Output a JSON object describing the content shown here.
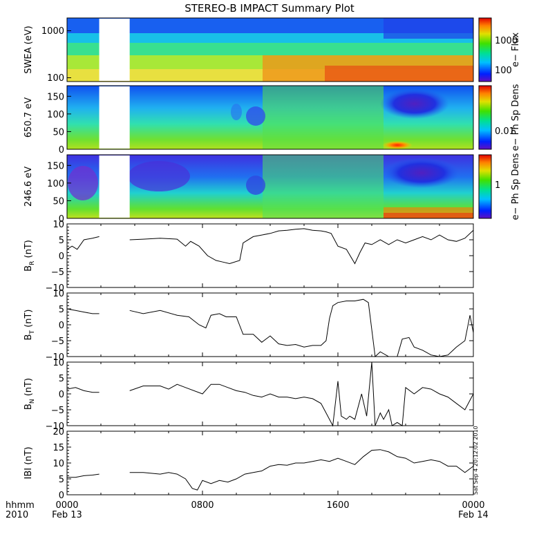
{
  "chart_data": {
    "type": "line",
    "title": "STEREO-B IMPACT Summary Plot",
    "x_axis": {
      "corner_labels": [
        "hhmm",
        "2010"
      ],
      "tick_labels": [
        "0000",
        "0800",
        "1600",
        "0000"
      ],
      "tick_dates": [
        "Feb 13",
        "",
        "",
        "Feb 14"
      ],
      "range_hours": [
        0,
        24
      ]
    },
    "data_gaps_hours": [
      [
        1.9,
        3.7
      ]
    ],
    "side_stamp": "Sat Sep  4 20:12:02 2010",
    "spectrograms": [
      {
        "ylabel": "SWEA (eV)",
        "ylim": [
          100,
          2000
        ],
        "y_scale": "log",
        "y_ticks": [
          "1000",
          "100"
        ],
        "colorbar_label": "e− Flux",
        "colorbar_ticks": [
          "1000",
          "100"
        ],
        "colorbar_scale": "log"
      },
      {
        "ylabel": "650.7 eV",
        "ylim": [
          0,
          180
        ],
        "y_ticks": [
          "150",
          "100",
          "50",
          "0"
        ],
        "colorbar_label": "e− Ph Sp Dens",
        "colorbar_ticks": [
          "0.01"
        ]
      },
      {
        "ylabel": "246.6 eV",
        "ylim": [
          0,
          180
        ],
        "y_ticks": [
          "150",
          "100",
          "50",
          "0"
        ],
        "colorbar_label": "e− Ph Sp Dens",
        "colorbar_ticks": [
          "1"
        ]
      }
    ],
    "line_panels": [
      {
        "name": "B_R",
        "ylabel_main": "B",
        "ylabel_sub": "R",
        "ylabel_unit": "(nT)",
        "ylim": [
          -10,
          10
        ],
        "y_ticks": [
          "10",
          "5",
          "0",
          "−5",
          "−10"
        ],
        "x": [
          0,
          0.3,
          0.6,
          1,
          1.5,
          1.9,
          3.7,
          4.5,
          5.5,
          6.5,
          7,
          7.3,
          7.8,
          8.3,
          8.8,
          9.2,
          9.6,
          10.2,
          10.4,
          11,
          11.5,
          12,
          12.5,
          13,
          13.5,
          14,
          14.5,
          15,
          15.3,
          15.6,
          16,
          16.5,
          17,
          17.3,
          17.6,
          18,
          18.5,
          19,
          19.5,
          20,
          20.5,
          21,
          21.5,
          22,
          22.5,
          23,
          23.5,
          24
        ],
        "values": [
          2,
          3,
          2,
          5,
          5.5,
          6,
          5,
          5.2,
          5.5,
          5.2,
          3,
          4.5,
          3,
          0,
          -1.5,
          -2,
          -2.5,
          -1.5,
          4,
          6,
          6.5,
          7,
          7.8,
          8,
          8.3,
          8.5,
          8,
          7.8,
          7.5,
          7,
          3,
          2,
          -2.5,
          1,
          4,
          3.5,
          5,
          3.5,
          5,
          4,
          5,
          6,
          5,
          6.5,
          5,
          4.5,
          5.5,
          8
        ]
      },
      {
        "name": "B_T",
        "ylabel_main": "B",
        "ylabel_sub": "T",
        "ylabel_unit": "(nT)",
        "ylim": [
          -10,
          10
        ],
        "y_ticks": [
          "10",
          "5",
          "0",
          "−5",
          "−10"
        ],
        "x": [
          0,
          0.5,
          1,
          1.5,
          1.9,
          3.7,
          4.5,
          5.5,
          6.5,
          7.2,
          7.8,
          8.2,
          8.5,
          9,
          9.4,
          10,
          10.4,
          11,
          11.5,
          12,
          12.5,
          13,
          13.5,
          14,
          14.5,
          15,
          15.3,
          15.5,
          15.7,
          16,
          16.5,
          17,
          17.5,
          17.8,
          18.2,
          18.5,
          19,
          19.5,
          19.8,
          20.2,
          20.5,
          21,
          21.5,
          22,
          22.5,
          23,
          23.5,
          23.8,
          24
        ],
        "values": [
          5,
          4.5,
          4,
          3.5,
          3.5,
          4.5,
          3.5,
          4.5,
          3,
          2.5,
          0,
          -1,
          3,
          3.5,
          2.5,
          2.5,
          -3,
          -3,
          -5.5,
          -3.5,
          -6,
          -6.5,
          -6.2,
          -7,
          -6.5,
          -6.5,
          -5,
          2,
          6,
          7,
          7.5,
          7.5,
          8,
          7,
          -10,
          -8.5,
          -10,
          -10,
          -4.5,
          -4,
          -7,
          -8,
          -9.5,
          -10,
          -9.5,
          -7,
          -5,
          3,
          -2.5
        ]
      },
      {
        "name": "B_N",
        "ylabel_main": "B",
        "ylabel_sub": "N",
        "ylabel_unit": "(nT)",
        "ylim": [
          -10,
          10
        ],
        "y_ticks": [
          "10",
          "5",
          "0",
          "−5",
          "−10"
        ],
        "x": [
          0,
          0.5,
          1,
          1.5,
          1.9,
          3.7,
          4.5,
          5.5,
          6,
          6.5,
          7,
          8,
          8.5,
          9,
          9.5,
          10,
          10.5,
          11,
          11.5,
          12,
          12.5,
          13,
          13.5,
          14,
          14.5,
          15,
          15.3,
          15.7,
          16,
          16.2,
          16.5,
          16.7,
          17,
          17.4,
          17.7,
          18,
          18.2,
          18.5,
          18.7,
          19,
          19.2,
          19.5,
          19.8,
          20,
          20.5,
          21,
          21.5,
          22,
          22.5,
          23,
          23.5,
          24
        ],
        "values": [
          1.5,
          2,
          1,
          0.5,
          0.5,
          1,
          2.5,
          2.5,
          1.5,
          3,
          2,
          0,
          3,
          3,
          2,
          1,
          0.5,
          -0.5,
          -1,
          0,
          -1,
          -1,
          -1.5,
          -1,
          -1.5,
          -3,
          -6,
          -10,
          4,
          -7,
          -8,
          -7,
          -8,
          0,
          -7,
          10,
          -10,
          -6,
          -8,
          -5,
          -10,
          -9,
          -10,
          2,
          0,
          2,
          1.5,
          0,
          -1,
          -3,
          -5,
          0
        ]
      },
      {
        "name": "|B|",
        "ylabel_main": "IBI (nT)",
        "ylim": [
          0,
          20
        ],
        "y_ticks": [
          "20",
          "15",
          "10",
          "5",
          "0"
        ],
        "x": [
          0,
          0.5,
          1,
          1.5,
          1.9,
          3.7,
          4.5,
          5.5,
          6,
          6.5,
          7,
          7.4,
          7.7,
          8,
          8.5,
          9,
          9.5,
          10,
          10.5,
          11,
          11.5,
          12,
          12.5,
          13,
          13.5,
          14,
          14.5,
          15,
          15.5,
          16,
          16.5,
          17,
          17.5,
          18,
          18.5,
          19,
          19.5,
          20,
          20.5,
          21,
          21.5,
          22,
          22.5,
          23,
          23.5,
          24
        ],
        "values": [
          5.5,
          5.5,
          6,
          6.2,
          6.5,
          7,
          7,
          6.5,
          7,
          6.5,
          5,
          2,
          1.5,
          4.5,
          3.5,
          4.5,
          4,
          5,
          6.5,
          7,
          7.5,
          9,
          9.5,
          9.3,
          10,
          10,
          10.5,
          11,
          10.5,
          11.5,
          10.5,
          9.5,
          12,
          14,
          14.2,
          13.5,
          12,
          11.5,
          10,
          10.5,
          11,
          10.5,
          9,
          9,
          7,
          9
        ]
      }
    ]
  }
}
